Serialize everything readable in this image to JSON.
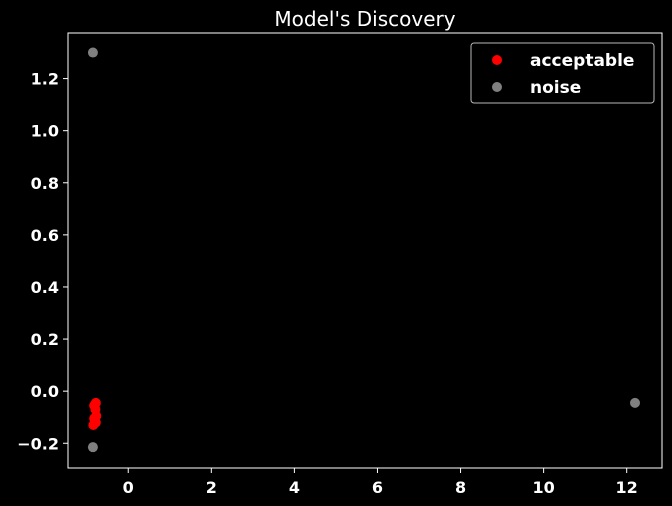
{
  "chart_data": {
    "type": "scatter",
    "title": "Model's Discovery",
    "xlabel": "",
    "ylabel": "",
    "xlim": [
      -1.45,
      12.85
    ],
    "ylim": [
      -0.295,
      1.375
    ],
    "xticks": [
      0,
      2,
      4,
      6,
      8,
      10,
      12
    ],
    "yticks": [
      -0.2,
      0.0,
      0.2,
      0.4,
      0.6,
      0.8,
      1.0,
      1.2
    ],
    "ytick_labels": [
      "−0.2",
      "0.0",
      "0.2",
      "0.4",
      "0.6",
      "0.8",
      "1.0",
      "1.2"
    ],
    "grid": false,
    "legend_position": "top-right",
    "series": [
      {
        "name": "acceptable",
        "color": "#ff0000",
        "points": [
          {
            "x": -0.78,
            "y": -0.045
          },
          {
            "x": -0.82,
            "y": -0.055
          },
          {
            "x": -0.79,
            "y": -0.07
          },
          {
            "x": -0.77,
            "y": -0.095
          },
          {
            "x": -0.82,
            "y": -0.105
          },
          {
            "x": -0.78,
            "y": -0.12
          },
          {
            "x": -0.84,
            "y": -0.13
          }
        ]
      },
      {
        "name": "noise",
        "color": "#808080",
        "points": [
          {
            "x": -0.85,
            "y": 1.3
          },
          {
            "x": -0.85,
            "y": -0.215
          },
          {
            "x": 12.2,
            "y": -0.045
          }
        ]
      }
    ]
  }
}
